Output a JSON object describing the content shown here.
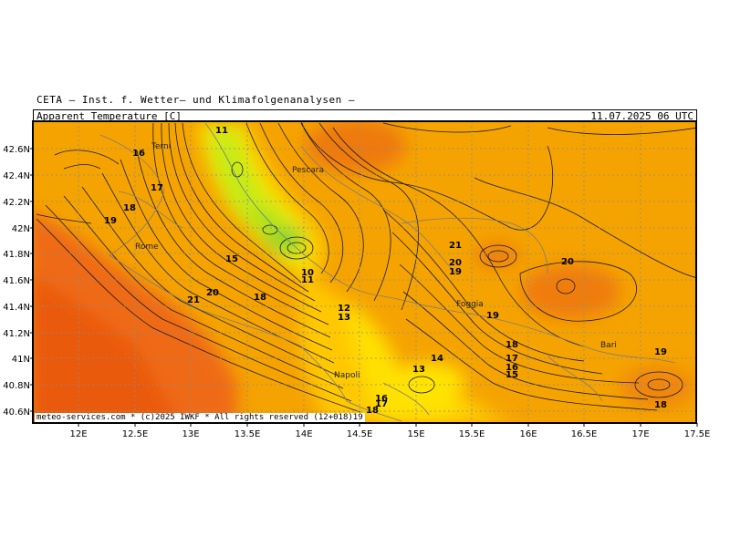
{
  "header": {
    "org_line": "CETA — Inst. f. Wetter— und Klimafolgenanalysen —",
    "field_label": "Apparent_Temperature [C]",
    "valid_time": "11.07.2025 06 UTC"
  },
  "footer": {
    "credit": "meteo-services.com * (c)2025 IWKF * All rights reserved (12+018)19"
  },
  "axes": {
    "lat_ticks": [
      "42.6N",
      "42.4N",
      "42.2N",
      "42N",
      "41.8N",
      "41.6N",
      "41.4N",
      "41.2N",
      "41N",
      "40.8N",
      "40.6N"
    ],
    "lon_ticks": [
      "12E",
      "12.5E",
      "13E",
      "13.5E",
      "14E",
      "14.5E",
      "15E",
      "15.5E",
      "16E",
      "16.5E",
      "17E",
      "17.5E"
    ]
  },
  "cities": [
    {
      "name": "Terni"
    },
    {
      "name": "Pescara"
    },
    {
      "name": "Rome"
    },
    {
      "name": "Foggia"
    },
    {
      "name": "Napoli"
    },
    {
      "name": "Bari"
    }
  ],
  "contour_labels": [
    {
      "v": "11"
    },
    {
      "v": "16"
    },
    {
      "v": "17"
    },
    {
      "v": "18"
    },
    {
      "v": "19"
    },
    {
      "v": "15"
    },
    {
      "v": "10"
    },
    {
      "v": "11"
    },
    {
      "v": "21"
    },
    {
      "v": "20"
    },
    {
      "v": "18"
    },
    {
      "v": "12"
    },
    {
      "v": "13"
    },
    {
      "v": "21"
    },
    {
      "v": "20"
    },
    {
      "v": "19"
    },
    {
      "v": "19"
    },
    {
      "v": "20"
    },
    {
      "v": "18"
    },
    {
      "v": "17"
    },
    {
      "v": "16"
    },
    {
      "v": "15"
    },
    {
      "v": "14"
    },
    {
      "v": "13"
    },
    {
      "v": "19"
    },
    {
      "v": "18"
    },
    {
      "v": "16"
    },
    {
      "v": "17"
    },
    {
      "v": "18"
    }
  ],
  "colors": {
    "warm": "#f5a300",
    "hot": "#ef6a12",
    "mild": "#ffd400",
    "cool": "#c6ec12",
    "cold": "#8fd62a"
  }
}
